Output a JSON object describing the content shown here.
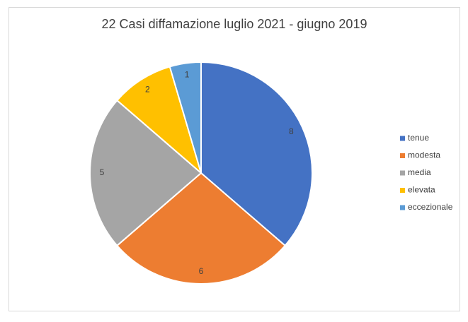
{
  "chart_data": {
    "type": "pie",
    "title": "22 Casi diffamazione luglio 2021 - giugno 2019",
    "categories": [
      "tenue",
      "modesta",
      "media",
      "elevata",
      "eccezionale"
    ],
    "values": [
      8,
      6,
      5,
      2,
      1
    ],
    "colors": [
      "#4472c4",
      "#ed7d31",
      "#a5a5a5",
      "#ffc000",
      "#5b9bd5"
    ],
    "legend": "right"
  }
}
